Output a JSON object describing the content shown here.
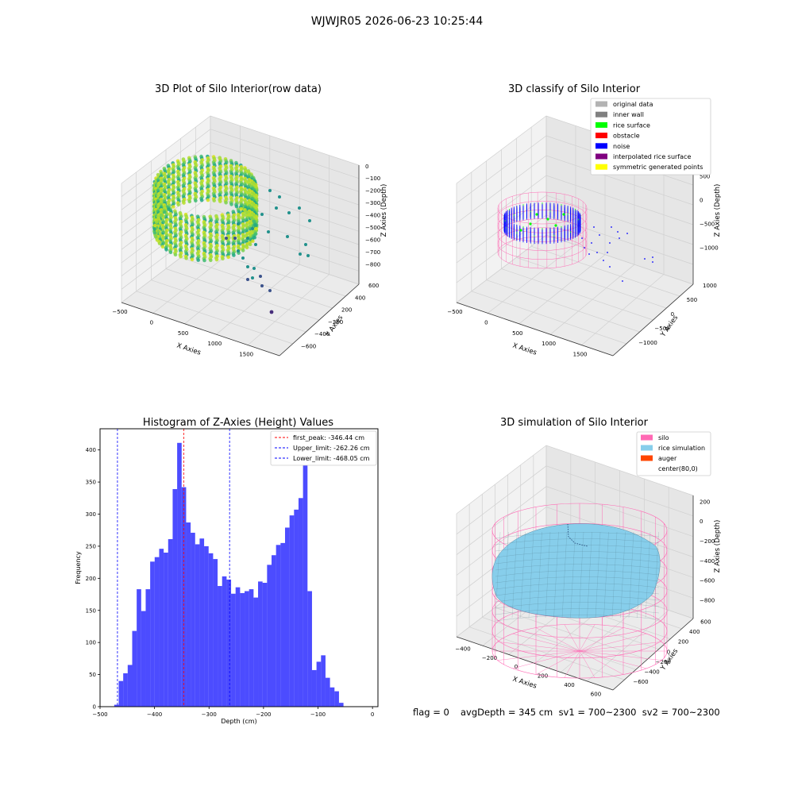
{
  "suptitle": "WJWJR05 2026-06-23 10:25:44",
  "footer": {
    "flag": "flag = 0",
    "stats": "avgDepth = 345 cm  sv1 = 700~2300  sv2 = 700~2300"
  },
  "panel1": {
    "title": "3D Plot of Silo Interior(row data)",
    "xlabel": "X Axies",
    "ylabel": "Y Axies",
    "zlabel": "Z Axies (Depth)",
    "xticks": [
      "−500",
      "0",
      "500",
      "1000",
      "1500"
    ],
    "yticks": [
      "600",
      "400",
      "200",
      "−200",
      "−400",
      "−600"
    ],
    "zticks": [
      "0",
      "−100",
      "−200",
      "−300",
      "−400",
      "−500",
      "−600",
      "−700",
      "−800"
    ]
  },
  "panel2": {
    "title": "3D classify of Silo Interior",
    "xlabel": "X Axies",
    "ylabel": "Y Axies",
    "zlabel": "Z Axies (Depth)",
    "xticks": [
      "−500",
      "0",
      "500",
      "1000",
      "1500"
    ],
    "yticks": [
      "1000",
      "500",
      "0",
      "−500",
      "−1000"
    ],
    "zticks": [
      "500",
      "0",
      "−500",
      "−1000"
    ],
    "legend": [
      {
        "label": "original data",
        "color": "#b3b3b3"
      },
      {
        "label": "inner wall",
        "color": "#808080"
      },
      {
        "label": "rice surface",
        "color": "#00ff00"
      },
      {
        "label": "obstacle",
        "color": "#ff0000"
      },
      {
        "label": "noise",
        "color": "#0000ff"
      },
      {
        "label": "interpolated rice surface",
        "color": "#800080"
      },
      {
        "label": "symmetric generated points",
        "color": "#ffff00"
      }
    ]
  },
  "panel3": {
    "title": "Histogram of Z-Axies (Height) Values",
    "xlabel": "Depth (cm)",
    "ylabel": "Frequency",
    "xticks": [
      "−500",
      "−400",
      "−300",
      "−200",
      "−100",
      "0"
    ],
    "yticks": [
      "0",
      "50",
      "100",
      "150",
      "200",
      "250",
      "300",
      "350",
      "400"
    ],
    "legend": [
      {
        "label": "first_peak: -346.44 cm",
        "color": "#ff0000"
      },
      {
        "label": "Upper_limit: -262.26 cm",
        "color": "#0000ff"
      },
      {
        "label": "Lower_limit: -468.05 cm",
        "color": "#0000ff"
      }
    ]
  },
  "panel4": {
    "title": "3D simulation of Silo Interior",
    "xlabel": "X Axies",
    "ylabel": "Y Axies",
    "zlabel": "Z Axies (Depth)",
    "xticks": [
      "−400",
      "−200",
      "0",
      "200",
      "400",
      "600"
    ],
    "yticks": [
      "600",
      "400",
      "200",
      "0",
      "−200",
      "−400",
      "−600"
    ],
    "zticks": [
      "200",
      "0",
      "−200",
      "−400",
      "−600",
      "−800"
    ],
    "legend": [
      {
        "label": "silo",
        "color": "#ff69b4"
      },
      {
        "label": "rice simulation",
        "color": "#87ceeb"
      },
      {
        "label": "auger",
        "color": "#ff4500"
      },
      {
        "label": "center(80,0)",
        "color": ""
      }
    ]
  },
  "chart_data": [
    {
      "type": "bar",
      "title": "Histogram of Z-Axies (Height) Values",
      "xlabel": "Depth (cm)",
      "ylabel": "Frequency",
      "xlim": [
        -500,
        10
      ],
      "ylim": [
        0,
        433
      ],
      "bin_start": -474,
      "bin_width": 8.25,
      "values": [
        3,
        40,
        52,
        65,
        118,
        183,
        149,
        183,
        226,
        233,
        246,
        240,
        261,
        339,
        411,
        342,
        287,
        271,
        253,
        262,
        250,
        239,
        230,
        188,
        203,
        198,
        176,
        186,
        177,
        180,
        183,
        170,
        195,
        193,
        221,
        236,
        252,
        255,
        279,
        298,
        307,
        325,
        402,
        180,
        57,
        70,
        80,
        45,
        30,
        24,
        6
      ],
      "vlines": [
        {
          "x": -346.44,
          "label": "first_peak: -346.44 cm",
          "color": "#ff0000"
        },
        {
          "x": -262.26,
          "label": "Upper_limit: -262.26 cm",
          "color": "#0000ff"
        },
        {
          "x": -468.05,
          "label": "Lower_limit: -468.05 cm",
          "color": "#0000ff"
        }
      ],
      "bar_color": "#0000ff"
    }
  ]
}
